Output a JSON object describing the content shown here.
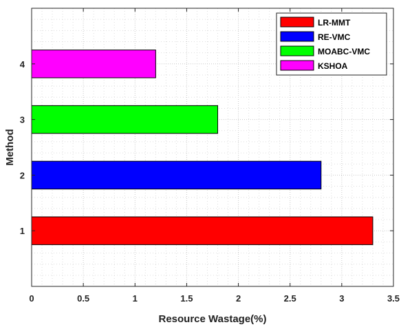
{
  "chart_data": {
    "type": "bar",
    "orientation": "horizontal",
    "categories": [
      "1",
      "2",
      "3",
      "4"
    ],
    "series": [
      {
        "name": "LR-MMT",
        "category": "1",
        "value": 3.3,
        "color": "#ff0000"
      },
      {
        "name": "RE-VMC",
        "category": "2",
        "value": 2.8,
        "color": "#0000ff"
      },
      {
        "name": "MOABC-VMC",
        "category": "3",
        "value": 1.8,
        "color": "#00ff00"
      },
      {
        "name": "KSHOA",
        "category": "4",
        "value": 1.2,
        "color": "#ff00ff"
      }
    ],
    "xlabel": "Resource Wastage(%)",
    "ylabel": "Method",
    "xlim": [
      0,
      3.5
    ],
    "ylim": [
      0,
      5
    ],
    "xticks": [
      "0",
      "0.5",
      "1",
      "1.5",
      "2",
      "2.5",
      "3",
      "3.5"
    ],
    "yticks": [
      "1",
      "2",
      "3",
      "4"
    ],
    "grid": true,
    "minor_grid": true,
    "legend_position": "top-right"
  }
}
